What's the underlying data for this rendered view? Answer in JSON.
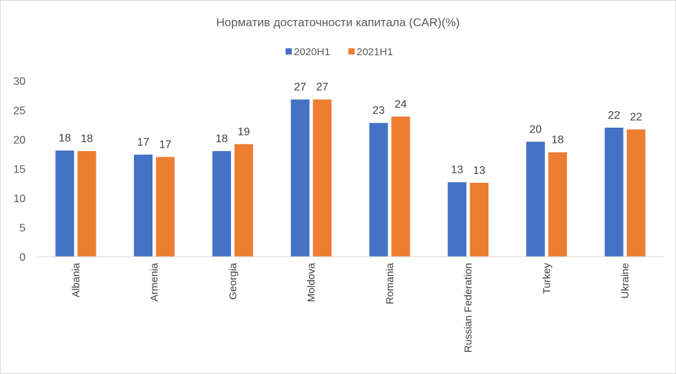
{
  "chart_data": {
    "type": "bar",
    "title": "Норматив достаточности капитала (CAR)(%)",
    "xlabel": "",
    "ylabel": "",
    "ylim": [
      0,
      30
    ],
    "yticks": [
      0,
      5,
      10,
      15,
      20,
      25,
      30
    ],
    "grid": false,
    "legend_position": "top",
    "categories": [
      "Albania",
      "Armenia",
      "Georgia",
      "Moldova",
      "Romania",
      "Russian Federation",
      "Turkey",
      "Ukraine"
    ],
    "series": [
      {
        "name": "2020H1",
        "color": "#4472c4",
        "values": [
          18.1,
          17.4,
          18.0,
          26.8,
          22.8,
          12.7,
          19.6,
          22.0
        ],
        "labels": [
          "18",
          "17",
          "18",
          "27",
          "23",
          "13",
          "20",
          "22"
        ]
      },
      {
        "name": "2021H1",
        "color": "#ed7d31",
        "values": [
          18.0,
          17.0,
          19.2,
          26.8,
          23.9,
          12.6,
          17.8,
          21.7
        ],
        "labels": [
          "18",
          "17",
          "19",
          "27",
          "24",
          "13",
          "18",
          "22"
        ]
      }
    ]
  }
}
